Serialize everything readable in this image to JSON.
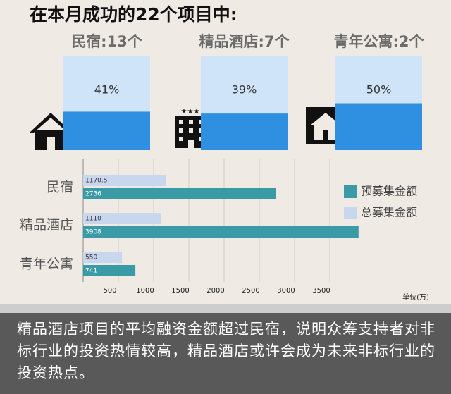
{
  "chart_data": [
    {
      "type": "fill",
      "title": "在本月成功的22个项目中:",
      "categories": [
        "民宿:13个",
        "精品酒店:7个",
        "青年公寓:2个"
      ],
      "values": [
        41,
        39,
        50
      ],
      "value_labels": [
        "41%",
        "39%",
        "50%"
      ],
      "ylim": [
        0,
        100
      ],
      "color": "#2f8fe0",
      "background_color": "#cfe4f8"
    },
    {
      "type": "hbar",
      "categories": [
        "民宿",
        "精品酒店",
        "青年公寓"
      ],
      "series": [
        {
          "name": "总募集金额",
          "color": "#c9d7ee",
          "values": [
            1170.5,
            1110,
            550
          ]
        },
        {
          "name": "预募集金额",
          "color": "#3a9aa6",
          "values": [
            2736,
            3908,
            741
          ]
        }
      ],
      "xlim": [
        0,
        4000
      ],
      "xticks": [
        500,
        1000,
        1500,
        2000,
        2500,
        3000,
        3500
      ],
      "grid": true,
      "unit": "单位(万)"
    }
  ],
  "caption": "精品酒店项目的平均融资金额超过民宿，说明众筹支持者对非标行业的投资热情较高，精品酒店或许会成为未来非标行业的投资热点。"
}
